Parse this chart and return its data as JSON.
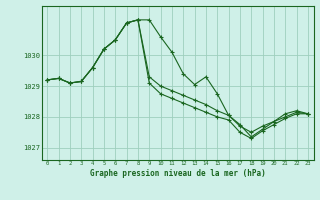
{
  "title": "Graphe pression niveau de la mer (hPa)",
  "background_color": "#cff0e8",
  "grid_color": "#9ecfbe",
  "line_color": "#1a6620",
  "ylim": [
    1026.6,
    1031.6
  ],
  "yticks": [
    1027,
    1028,
    1029,
    1030
  ],
  "xlim": [
    -0.5,
    23.5
  ],
  "xticks": [
    0,
    1,
    2,
    3,
    4,
    5,
    6,
    7,
    8,
    9,
    10,
    11,
    12,
    13,
    14,
    15,
    16,
    17,
    18,
    19,
    20,
    21,
    22,
    23
  ],
  "series": [
    [
      1029.2,
      1029.25,
      1029.1,
      1029.15,
      1029.6,
      1030.2,
      1030.5,
      1031.05,
      1031.15,
      1031.15,
      1030.6,
      1030.1,
      1029.4,
      1029.05,
      1029.3,
      1028.75,
      1028.05,
      1027.75,
      1027.35,
      1027.6,
      1027.85,
      1028.1,
      1028.2,
      1028.1
    ],
    [
      1029.2,
      1029.25,
      1029.1,
      1029.15,
      1029.6,
      1030.2,
      1030.5,
      1031.05,
      1031.15,
      1029.3,
      1029.0,
      1028.85,
      1028.7,
      1028.55,
      1028.4,
      1028.2,
      1028.05,
      1027.7,
      1027.5,
      1027.7,
      1027.85,
      1028.0,
      1028.15,
      1028.1
    ],
    [
      1029.2,
      1029.25,
      1029.1,
      1029.15,
      1029.6,
      1030.2,
      1030.5,
      1031.05,
      1031.15,
      1029.1,
      1028.75,
      1028.6,
      1028.45,
      1028.3,
      1028.15,
      1028.0,
      1027.9,
      1027.5,
      1027.3,
      1027.55,
      1027.75,
      1027.95,
      1028.1,
      1028.1
    ]
  ]
}
